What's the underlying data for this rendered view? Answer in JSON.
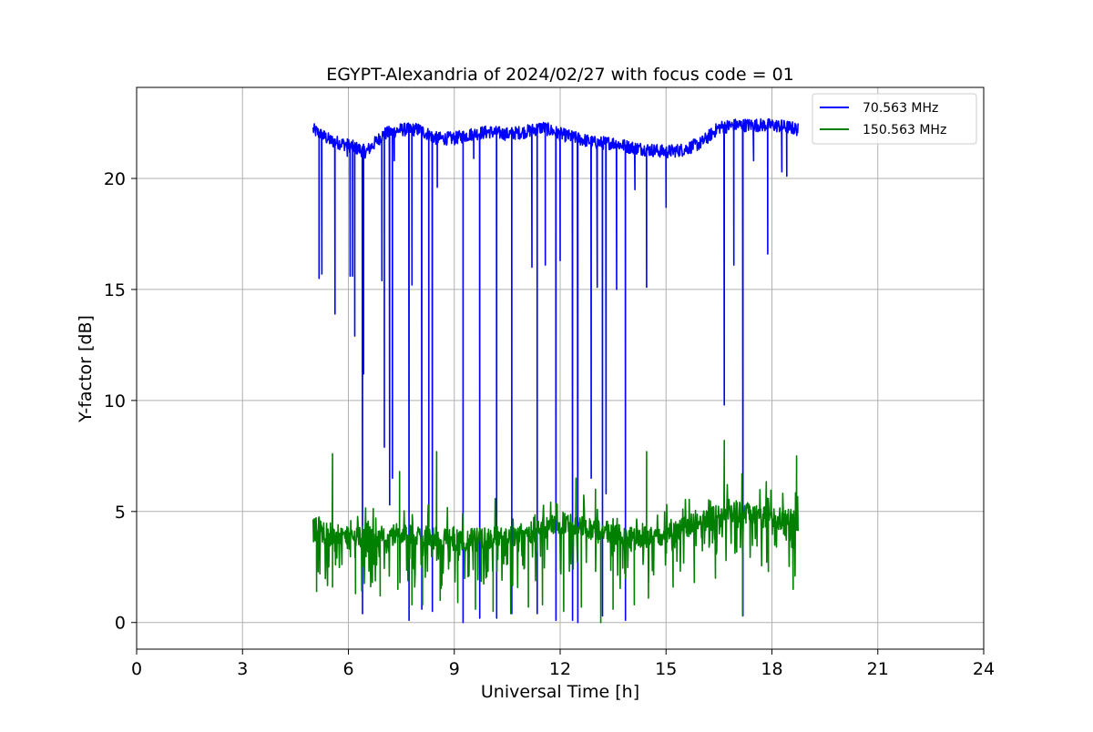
{
  "chart_data": {
    "type": "line",
    "title": "EGYPT-Alexandria of 2024/02/27 with focus code = 01",
    "xlabel": "Universal Time [h]",
    "ylabel": "Y-factor [dB]",
    "xlim": [
      0,
      24
    ],
    "ylim": [
      -1.2,
      24.1
    ],
    "xticks": [
      0,
      3,
      6,
      9,
      12,
      15,
      18,
      21,
      24
    ],
    "yticks": [
      0,
      5,
      10,
      15,
      20
    ],
    "grid": true,
    "legend_position": "top-right",
    "time_range": [
      5.0,
      18.75
    ],
    "series": [
      {
        "name": " 70.563 MHz",
        "color": "#0000ff",
        "baseline": [
          [
            5.0,
            22.2
          ],
          [
            5.5,
            21.7
          ],
          [
            6.0,
            21.5
          ],
          [
            6.5,
            21.2
          ],
          [
            7.0,
            22.0
          ],
          [
            7.5,
            22.2
          ],
          [
            8.0,
            22.2
          ],
          [
            8.5,
            21.8
          ],
          [
            9.0,
            21.8
          ],
          [
            9.5,
            22.0
          ],
          [
            10.0,
            22.1
          ],
          [
            10.5,
            22.0
          ],
          [
            11.0,
            22.1
          ],
          [
            11.5,
            22.3
          ],
          [
            12.0,
            22.0
          ],
          [
            12.5,
            21.8
          ],
          [
            13.0,
            21.6
          ],
          [
            13.5,
            21.6
          ],
          [
            14.0,
            21.4
          ],
          [
            14.5,
            21.3
          ],
          [
            15.0,
            21.2
          ],
          [
            15.5,
            21.3
          ],
          [
            16.0,
            21.6
          ],
          [
            16.5,
            22.3
          ],
          [
            17.0,
            22.4
          ],
          [
            17.5,
            22.4
          ],
          [
            18.0,
            22.4
          ],
          [
            18.5,
            22.3
          ],
          [
            18.75,
            22.2
          ]
        ],
        "noise": 0.3,
        "dips": [
          [
            5.17,
            15.5
          ],
          [
            5.25,
            15.7
          ],
          [
            5.62,
            13.9
          ],
          [
            5.97,
            21.0
          ],
          [
            6.05,
            15.6
          ],
          [
            6.12,
            15.6
          ],
          [
            6.18,
            12.9
          ],
          [
            6.4,
            0.4
          ],
          [
            6.43,
            11.2
          ],
          [
            6.95,
            15.4
          ],
          [
            7.02,
            7.9
          ],
          [
            7.17,
            5.3
          ],
          [
            7.25,
            6.5
          ],
          [
            7.3,
            20.8
          ],
          [
            7.72,
            0.1
          ],
          [
            7.8,
            15.2
          ],
          [
            8.08,
            0.6
          ],
          [
            8.28,
            4.3
          ],
          [
            8.38,
            0.5
          ],
          [
            8.52,
            19.6
          ],
          [
            9.25,
            0.0
          ],
          [
            9.55,
            20.9
          ],
          [
            9.72,
            0.2
          ],
          [
            10.2,
            0.2
          ],
          [
            10.63,
            0.4
          ],
          [
            11.2,
            16.0
          ],
          [
            11.35,
            0.4
          ],
          [
            11.58,
            16.1
          ],
          [
            11.88,
            0.1
          ],
          [
            12.0,
            16.3
          ],
          [
            12.35,
            0.1
          ],
          [
            12.5,
            0.0
          ],
          [
            12.88,
            6.5
          ],
          [
            13.05,
            15.1
          ],
          [
            13.2,
            0.3
          ],
          [
            13.3,
            5.8
          ],
          [
            13.6,
            15.0
          ],
          [
            13.85,
            0.1
          ],
          [
            14.12,
            19.5
          ],
          [
            14.45,
            15.1
          ],
          [
            15.0,
            18.7
          ],
          [
            16.65,
            9.8
          ],
          [
            16.92,
            16.1
          ],
          [
            17.18,
            0.3
          ],
          [
            17.48,
            20.8
          ],
          [
            17.88,
            16.6
          ],
          [
            18.28,
            20.3
          ],
          [
            18.42,
            20.1
          ]
        ]
      },
      {
        "name": "150.563 MHz",
        "color": "#008000",
        "baseline": [
          [
            5.0,
            4.2
          ],
          [
            6.0,
            3.8
          ],
          [
            7.0,
            3.9
          ],
          [
            8.0,
            3.9
          ],
          [
            9.0,
            3.7
          ],
          [
            10.0,
            3.8
          ],
          [
            11.0,
            4.0
          ],
          [
            12.0,
            4.5
          ],
          [
            13.0,
            4.2
          ],
          [
            14.0,
            3.8
          ],
          [
            15.0,
            3.9
          ],
          [
            16.0,
            4.6
          ],
          [
            17.0,
            5.0
          ],
          [
            18.0,
            4.7
          ],
          [
            18.75,
            4.6
          ]
        ],
        "noise": 0.5,
        "spikes": [
          [
            5.55,
            7.6
          ],
          [
            7.45,
            6.8
          ],
          [
            8.5,
            7.7
          ],
          [
            12.45,
            6.5
          ],
          [
            13.0,
            6.0
          ],
          [
            14.45,
            7.7
          ],
          [
            16.65,
            8.2
          ],
          [
            17.15,
            6.7
          ],
          [
            18.7,
            7.5
          ]
        ],
        "drops": [
          [
            5.1,
            1.4
          ],
          [
            5.55,
            1.6
          ],
          [
            6.2,
            1.3
          ],
          [
            6.9,
            1.2
          ],
          [
            7.4,
            1.5
          ],
          [
            7.8,
            0.8
          ],
          [
            8.1,
            0.8
          ],
          [
            8.6,
            1.0
          ],
          [
            9.1,
            0.9
          ],
          [
            9.6,
            0.6
          ],
          [
            10.1,
            0.5
          ],
          [
            10.6,
            0.4
          ],
          [
            11.1,
            0.7
          ],
          [
            11.5,
            0.8
          ],
          [
            12.1,
            0.5
          ],
          [
            12.6,
            0.7
          ],
          [
            13.15,
            0.0
          ],
          [
            13.5,
            0.6
          ],
          [
            14.1,
            0.8
          ],
          [
            14.5,
            1.1
          ],
          [
            15.2,
            1.6
          ],
          [
            15.8,
            1.8
          ],
          [
            16.4,
            2.0
          ],
          [
            17.17,
            0.3
          ],
          [
            17.9,
            2.3
          ],
          [
            18.6,
            1.5
          ]
        ]
      }
    ]
  }
}
